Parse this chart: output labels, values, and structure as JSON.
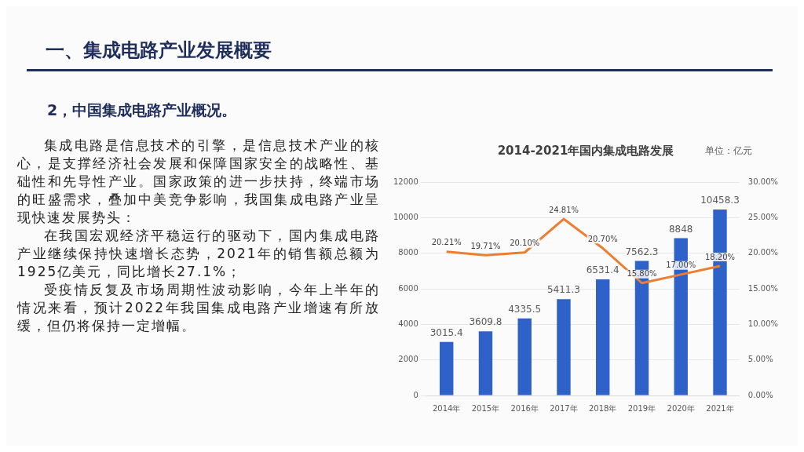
{
  "chart_data": {
    "type": "bar",
    "title": "2014-2021年国内集成电路发展",
    "annotations": [
      "一、集成电路产业发展概要",
      "2，中国集成电路产业概况。",
      "集成电路是信息技术的引擎，是信息技术产业的核心，是支撑经济社会发展和保障国家安全的战略性、基础性和先导性产业。国家政策的进一步扶持，终端市场的旺盛需求，叠加中美竞争影响，我国集成电路产业呈现快速发展势头：",
      "在我国宏观经济平稳运行的驱动下，国内集成电路产业继续保持快速增长态势，2021年的销售额总额为1925亿美元，同比增长27.1%；",
      "受疫情反复及市场周期性波动影响，今年上半年的情况来看，预计2022年我国集成电路产业增速有所放缓，但仍将保持一定增幅。",
      "单位：亿元"
    ],
    "categories": [
      "2014年",
      "2015年",
      "2016年",
      "2017年",
      "2018年",
      "2019年",
      "2020年",
      "2021年"
    ],
    "series": [
      {
        "color": "#2f62c8",
        "values": [
          3015.4,
          3609.8,
          4335.5,
          5411.3,
          6531.4,
          7562.3,
          8848,
          10458.3
        ],
        "value_labels": [
          "3015.4",
          "3609.8",
          "4335.5",
          "5411.3",
          "6531.4",
          "7562.3",
          "8848",
          "10458.3"
        ]
      },
      {
        "type": "line",
        "axis": "y2",
        "color": "#ed7d31",
        "values": [
          20.21,
          19.71,
          20.1,
          24.81,
          20.7,
          15.8,
          17.0,
          18.2
        ],
        "value_labels": [
          "20.21%",
          "19.71%",
          "20.10%",
          "24.81%",
          "20.70%",
          "15.80%",
          "17.00%",
          "18.20%"
        ]
      }
    ],
    "ylim": [
      0,
      12000
    ],
    "yticks": [
      0,
      2000,
      4000,
      6000,
      8000,
      10000,
      12000
    ],
    "y2lim": [
      0,
      30
    ],
    "y2ticks": [
      {
        "value": 0,
        "label": "0.00%"
      },
      {
        "value": 5,
        "label": "5.00%"
      },
      {
        "value": 10,
        "label": "10.00%"
      },
      {
        "value": 15,
        "label": "15.00%"
      },
      {
        "value": 20,
        "label": "20.00%"
      },
      {
        "value": 25,
        "label": "25.00%"
      },
      {
        "value": 30,
        "label": "30.00%"
      }
    ],
    "grid": "y",
    "legend": false,
    "marker": "none",
    "line_style": "solid"
  }
}
